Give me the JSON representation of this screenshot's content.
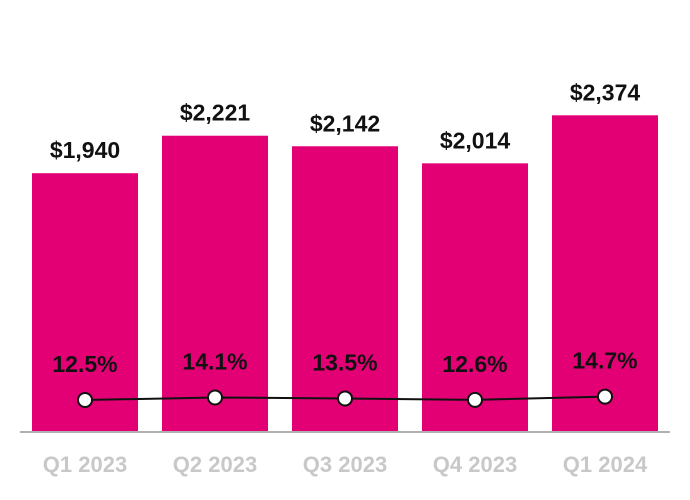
{
  "chart_data": {
    "type": "bar",
    "categories": [
      "Q1 2023",
      "Q2 2023",
      "Q3 2023",
      "Q4 2023",
      "Q1 2024"
    ],
    "series": [
      {
        "name": "Value",
        "type": "bar",
        "values": [
          1940,
          2221,
          2142,
          2014,
          2374
        ],
        "labels": [
          "$1,940",
          "$2,221",
          "$2,142",
          "$2,014",
          "$2,374"
        ],
        "color": "#e20074"
      },
      {
        "name": "Percent",
        "type": "line",
        "values": [
          12.5,
          14.1,
          13.5,
          12.6,
          14.7
        ],
        "labels": [
          "12.5%",
          "14.1%",
          "13.5%",
          "12.6%",
          "14.7%"
        ],
        "color": "#111111"
      }
    ],
    "title": "",
    "xlabel": "",
    "ylabel": "",
    "ylim": [
      0,
      2600
    ],
    "grid": false,
    "legend": "none"
  }
}
